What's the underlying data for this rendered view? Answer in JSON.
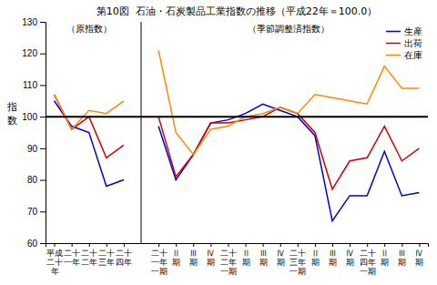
{
  "chart_data": {
    "type": "line",
    "title": "第10図  石油・石炭製品工業指数の推移（平成22年＝100.0）",
    "ylabel": "指数",
    "categories": [
      "平成\n二十\n年",
      "二十\n一年",
      "二十\n二年",
      "二十\n三年",
      "二十\n四年",
      null,
      "二十\n一年\n一期",
      "Ⅱ\n期",
      "Ⅲ\n期",
      "Ⅳ\n期",
      "二十\n二年\n一期",
      "Ⅱ\n期",
      "Ⅲ\n期",
      "Ⅳ\n期",
      "二十\n三年\n一期",
      "Ⅱ\n期",
      "Ⅲ\n期",
      "Ⅳ\n期",
      "二十\n四年\n一期",
      "Ⅱ\n期",
      "Ⅲ\n期",
      "Ⅳ\n期"
    ],
    "series": [
      {
        "name": "生産",
        "color": "#0000cc",
        "values": [
          105,
          97,
          95,
          78,
          80,
          null,
          97,
          80,
          88,
          98,
          99,
          101,
          104,
          102,
          100,
          94,
          67,
          75,
          75,
          89,
          75,
          76
        ]
      },
      {
        "name": "出荷",
        "color": "#cc0000",
        "values": [
          107,
          96,
          100,
          87,
          91,
          null,
          100,
          81,
          88,
          98,
          98,
          99,
          100,
          103,
          101,
          95,
          77,
          86,
          87,
          97,
          86,
          90
        ]
      },
      {
        "name": "在庫",
        "color": "#ff8800",
        "values": [
          107,
          96,
          102,
          101,
          105,
          null,
          121,
          95,
          88,
          96,
          97,
          100,
          101,
          103,
          101,
          107,
          106,
          105,
          104,
          116,
          109,
          109
        ]
      }
    ],
    "ylim": [
      60,
      130
    ],
    "yticks": [
      60,
      70,
      80,
      90,
      100,
      110,
      120,
      130
    ],
    "reference_line": 100,
    "annotations": [
      "（原指数）",
      "（季節調整済指数）"
    ],
    "legend": "upper right",
    "grid": false
  }
}
